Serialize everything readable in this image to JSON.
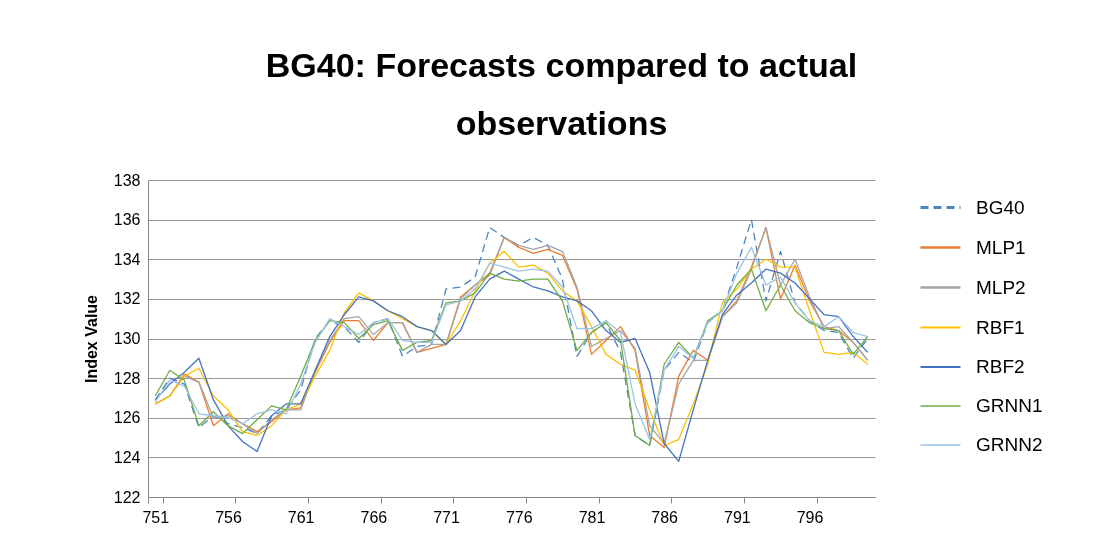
{
  "chart_data": {
    "type": "line",
    "title": "BG40: Forecasts compared to actual observations",
    "ylabel": "Index Value",
    "categories": [
      "751",
      null,
      null,
      null,
      null,
      "756",
      null,
      null,
      null,
      null,
      "761",
      null,
      null,
      null,
      null,
      "766",
      null,
      null,
      null,
      null,
      "771",
      null,
      null,
      null,
      null,
      "776",
      null,
      null,
      null,
      null,
      "781",
      null,
      null,
      null,
      null,
      "786",
      null,
      null,
      null,
      null,
      "791",
      null,
      null,
      null,
      null,
      "796",
      null,
      null,
      null,
      null
    ],
    "ylim": [
      122,
      138
    ],
    "yticks": [
      122,
      124,
      126,
      128,
      130,
      132,
      134,
      136,
      138
    ],
    "grid": "y",
    "legend": "right",
    "series": [
      {
        "name": "BG40",
        "color": "#4a86c0",
        "line_style": "dashed",
        "values": [
          126.9,
          128.0,
          127.7,
          125.5,
          126.1,
          125.7,
          125.5,
          125.2,
          126.1,
          126.4,
          127.4,
          130.0,
          130.9,
          130.6,
          129.8,
          130.8,
          131.0,
          129.1,
          129.6,
          129.7,
          132.5,
          132.6,
          133.1,
          135.6,
          135.1,
          134.7,
          135.1,
          134.7,
          133.0,
          129.1,
          130.3,
          130.8,
          129.3,
          125.1,
          124.6,
          128.4,
          129.3,
          128.8,
          130.8,
          131.4,
          133.6,
          136.0,
          131.9,
          134.4,
          131.8,
          130.9,
          130.4,
          130.3,
          129.0,
          130.0
        ]
      },
      {
        "name": "MLP1",
        "color": "#ed7d31",
        "line_style": "solid",
        "values": [
          126.7,
          127.1,
          128.2,
          127.8,
          125.6,
          126.2,
          125.7,
          125.3,
          125.8,
          126.4,
          126.5,
          128.3,
          129.8,
          130.9,
          130.9,
          129.9,
          130.8,
          130.8,
          129.3,
          129.5,
          129.7,
          132.1,
          132.7,
          133.2,
          135.1,
          134.6,
          134.3,
          134.5,
          134.2,
          132.5,
          129.2,
          129.9,
          130.6,
          129.4,
          125.1,
          124.5,
          128.1,
          129.4,
          128.9,
          131.1,
          131.9,
          133.6,
          135.6,
          132.0,
          133.7,
          131.9,
          130.6,
          130.4,
          129.8,
          128.9
        ]
      },
      {
        "name": "MLP2",
        "color": "#a5a5a5",
        "line_style": "solid",
        "values": [
          126.7,
          127.1,
          128.1,
          127.8,
          126.0,
          126.1,
          125.7,
          125.2,
          125.9,
          126.4,
          126.4,
          128.4,
          129.9,
          131.0,
          131.1,
          130.2,
          130.8,
          130.8,
          129.3,
          129.7,
          129.7,
          132.0,
          132.7,
          133.3,
          135.1,
          134.7,
          134.5,
          134.7,
          134.4,
          132.6,
          129.6,
          130.0,
          130.4,
          129.5,
          125.6,
          124.7,
          127.7,
          128.9,
          128.9,
          131.1,
          131.8,
          133.5,
          135.6,
          132.7,
          134.0,
          132.1,
          130.5,
          130.6,
          129.8,
          128.9
        ]
      },
      {
        "name": "RBF1",
        "color": "#ffc000",
        "line_style": "solid",
        "values": [
          126.7,
          127.1,
          128.1,
          128.5,
          127.1,
          126.4,
          125.3,
          125.1,
          125.6,
          126.4,
          126.7,
          128.1,
          129.4,
          131.3,
          132.3,
          131.9,
          131.4,
          131.0,
          130.6,
          130.4,
          129.7,
          130.9,
          132.4,
          133.8,
          134.4,
          133.6,
          133.7,
          133.3,
          132.4,
          131.9,
          130.6,
          129.2,
          128.7,
          128.4,
          126.4,
          124.6,
          124.9,
          126.7,
          128.7,
          131.8,
          132.5,
          133.5,
          134.0,
          133.6,
          133.6,
          131.4,
          129.3,
          129.2,
          129.3,
          128.7
        ]
      },
      {
        "name": "RBF2",
        "color": "#4472c4",
        "line_style": "solid",
        "values": [
          126.9,
          127.7,
          128.3,
          129.0,
          126.9,
          125.6,
          124.8,
          124.3,
          126.1,
          126.7,
          126.7,
          128.4,
          130.1,
          131.2,
          132.1,
          131.9,
          131.4,
          131.1,
          130.6,
          130.4,
          129.7,
          130.4,
          132.1,
          133.0,
          133.4,
          133.0,
          132.6,
          132.4,
          132.1,
          131.9,
          131.4,
          130.4,
          129.8,
          130.0,
          128.3,
          124.7,
          123.8,
          126.4,
          128.9,
          131.2,
          132.2,
          132.8,
          133.5,
          133.3,
          132.8,
          132.0,
          131.2,
          131.1,
          130.1,
          129.3
        ]
      },
      {
        "name": "GRNN1",
        "color": "#70ad47",
        "line_style": "solid",
        "values": [
          127.1,
          128.4,
          127.9,
          125.6,
          126.3,
          125.6,
          125.2,
          125.9,
          126.6,
          126.4,
          128.1,
          129.9,
          130.9,
          130.8,
          130.0,
          130.7,
          130.9,
          129.4,
          129.8,
          129.9,
          131.8,
          131.9,
          132.3,
          133.3,
          133.0,
          132.9,
          133.0,
          133.0,
          131.9,
          129.4,
          130.3,
          130.8,
          129.9,
          125.1,
          124.6,
          128.7,
          129.8,
          129.0,
          130.9,
          131.4,
          132.7,
          133.5,
          131.4,
          132.7,
          131.4,
          130.8,
          130.5,
          130.4,
          129.2,
          130.1
        ]
      },
      {
        "name": "GRNN2",
        "color": "#9dc3e6",
        "line_style": "solid",
        "values": [
          126.8,
          127.9,
          127.6,
          126.2,
          126.1,
          126.0,
          125.7,
          126.2,
          126.4,
          126.2,
          127.7,
          129.8,
          131.0,
          130.6,
          130.2,
          130.8,
          131.0,
          129.9,
          129.8,
          129.8,
          131.7,
          131.9,
          132.5,
          133.8,
          133.6,
          133.4,
          133.5,
          133.4,
          132.6,
          130.5,
          130.5,
          130.9,
          130.3,
          126.7,
          124.9,
          128.4,
          129.6,
          129.0,
          130.8,
          131.4,
          133.3,
          134.6,
          132.7,
          133.1,
          131.8,
          130.9,
          130.6,
          131.1,
          130.3,
          130.1
        ]
      }
    ]
  }
}
